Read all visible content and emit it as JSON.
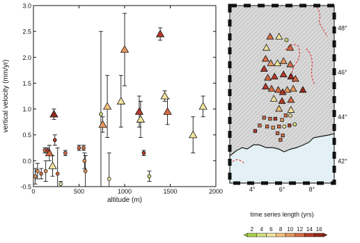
{
  "colors": {
    "scale": [
      "#a8d34a",
      "#d6e07c",
      "#f2e59e",
      "#f4c27c",
      "#e7975e",
      "#d76b43",
      "#b53a2a",
      "#8f2b1e"
    ],
    "ocean": "#e3f1f6",
    "land": "#d8d8d8",
    "fault": "#e2222b",
    "frame": "#111111"
  },
  "chart_data": [
    {
      "type": "scatter",
      "title": "",
      "xlabel": "altitude (m)",
      "ylabel": "vertical velocity (mm/yr)",
      "xlim": [
        0,
        2000
      ],
      "ylim": [
        -0.5,
        3.0
      ],
      "xticks": [
        "0",
        "500",
        "1000",
        "1500",
        "2000"
      ],
      "yticks": [
        "-0.5",
        "0.0",
        "0.5",
        "1.0",
        "1.5",
        "2.0",
        "2.5",
        "3.0"
      ],
      "color_variable": "time series length (yrs)",
      "series": [
        {
          "marker": "triangle",
          "points": [
            {
              "x": 225,
              "y": 0.9,
              "err": 0.1,
              "t": 15
            },
            {
              "x": 175,
              "y": 0.15,
              "err": 0.15,
              "t": 11
            },
            {
              "x": 210,
              "y": -0.1,
              "err": 0.2,
              "t": 5
            },
            {
              "x": 760,
              "y": 0.7,
              "err": 0.15,
              "t": 9
            },
            {
              "x": 810,
              "y": 1.05,
              "err": 0.6,
              "t": 8
            },
            {
              "x": 960,
              "y": 1.15,
              "err": 0.5,
              "t": 5
            },
            {
              "x": 1000,
              "y": 2.15,
              "err": 0.7,
              "t": 10
            },
            {
              "x": 1160,
              "y": 0.95,
              "err": 0.3,
              "t": 14
            },
            {
              "x": 1175,
              "y": 0.8,
              "err": 0.35,
              "t": 5
            },
            {
              "x": 1390,
              "y": 2.45,
              "err": 0.12,
              "t": 13
            },
            {
              "x": 1440,
              "y": 1.25,
              "err": 0.1,
              "t": 6
            },
            {
              "x": 1470,
              "y": 0.95,
              "err": 0.25,
              "t": 11
            },
            {
              "x": 1750,
              "y": 0.5,
              "err": 0.35,
              "t": 5
            },
            {
              "x": 1860,
              "y": 1.05,
              "err": 0.2,
              "t": 5
            }
          ]
        },
        {
          "marker": "circle",
          "points": [
            {
              "x": 20,
              "y": -0.3,
              "err": 0.15,
              "t": 10
            },
            {
              "x": 45,
              "y": -0.2,
              "err": 0.15,
              "t": 9
            },
            {
              "x": 85,
              "y": -0.25,
              "err": 0.1,
              "t": 11
            },
            {
              "x": 125,
              "y": 0.2,
              "err": 0.05,
              "t": 12
            },
            {
              "x": 135,
              "y": -0.2,
              "err": 0.2,
              "t": 10
            },
            {
              "x": 155,
              "y": 0.2,
              "err": 0.05,
              "t": 13
            },
            {
              "x": 235,
              "y": 0.4,
              "err": 0.1,
              "t": 13
            },
            {
              "x": 265,
              "y": -0.25,
              "err": 0.5,
              "t": 11
            },
            {
              "x": 300,
              "y": -0.45,
              "err": 0.05,
              "t": 5
            },
            {
              "x": 350,
              "y": 0.15,
              "err": 0.05,
              "t": 12
            },
            {
              "x": 500,
              "y": 0.25,
              "err": 0.05,
              "t": 12
            },
            {
              "x": 550,
              "y": 0.25,
              "err": 0.05,
              "t": 11
            },
            {
              "x": 560,
              "y": 0.0,
              "err": 0.15,
              "t": 9
            },
            {
              "x": 570,
              "y": -0.2,
              "err": 0.3,
              "t": 10
            },
            {
              "x": 740,
              "y": 0.9,
              "err": 1.6,
              "t": 4
            },
            {
              "x": 830,
              "y": -0.35,
              "err": 0.5,
              "t": 5
            },
            {
              "x": 1210,
              "y": 0.15,
              "err": 0.05,
              "t": 13
            },
            {
              "x": 1270,
              "y": -0.3,
              "err": 0.1,
              "t": 4
            }
          ]
        }
      ]
    },
    {
      "type": "map",
      "lon_ticks": [
        "4°",
        "6°",
        "8°"
      ],
      "lat_ticks": [
        "48°",
        "46°",
        "44°",
        "42°"
      ],
      "lon_range": [
        2.5,
        9.5
      ],
      "lat_range": [
        41.0,
        49.0
      ],
      "sites": [
        {
          "lon": 5.2,
          "lat": 47.6,
          "marker": "triangle",
          "t": 11
        },
        {
          "lon": 5.8,
          "lat": 47.6,
          "marker": "triangle",
          "t": 5
        },
        {
          "lon": 6.3,
          "lat": 47.45,
          "marker": "circle",
          "t": 4
        },
        {
          "lon": 4.95,
          "lat": 47.1,
          "marker": "triangle",
          "t": 5
        },
        {
          "lon": 6.55,
          "lat": 47.1,
          "marker": "triangle",
          "t": 12
        },
        {
          "lon": 4.9,
          "lat": 46.6,
          "marker": "triangle",
          "t": 12
        },
        {
          "lon": 5.25,
          "lat": 46.4,
          "marker": "triangle",
          "t": 10
        },
        {
          "lon": 4.8,
          "lat": 46.15,
          "marker": "triangle",
          "t": 13
        },
        {
          "lon": 5.7,
          "lat": 46.4,
          "marker": "triangle",
          "t": 5
        },
        {
          "lon": 6.1,
          "lat": 46.5,
          "marker": "triangle",
          "t": 9
        },
        {
          "lon": 6.55,
          "lat": 46.35,
          "marker": "triangle",
          "t": 11
        },
        {
          "lon": 5.05,
          "lat": 45.75,
          "marker": "triangle",
          "t": 12
        },
        {
          "lon": 5.5,
          "lat": 45.8,
          "marker": "triangle",
          "t": 13
        },
        {
          "lon": 6.1,
          "lat": 45.9,
          "marker": "triangle",
          "t": 14
        },
        {
          "lon": 6.6,
          "lat": 45.8,
          "marker": "triangle",
          "t": 15
        },
        {
          "lon": 6.9,
          "lat": 45.7,
          "marker": "triangle",
          "t": 11
        },
        {
          "lon": 4.9,
          "lat": 45.35,
          "marker": "triangle",
          "t": 13
        },
        {
          "lon": 5.3,
          "lat": 45.25,
          "marker": "triangle",
          "t": 11
        },
        {
          "lon": 5.75,
          "lat": 45.2,
          "marker": "triangle",
          "t": 12
        },
        {
          "lon": 6.05,
          "lat": 45.1,
          "marker": "triangle",
          "t": 14
        },
        {
          "lon": 6.35,
          "lat": 45.2,
          "marker": "triangle",
          "t": 10
        },
        {
          "lon": 6.75,
          "lat": 45.25,
          "marker": "triangle",
          "t": 9
        },
        {
          "lon": 7.4,
          "lat": 45.2,
          "marker": "triangle",
          "t": 15
        },
        {
          "lon": 5.45,
          "lat": 44.8,
          "marker": "triangle",
          "t": 5
        },
        {
          "lon": 6.0,
          "lat": 44.7,
          "marker": "triangle",
          "t": 13
        },
        {
          "lon": 6.6,
          "lat": 44.75,
          "marker": "triangle",
          "t": 11
        },
        {
          "lon": 5.8,
          "lat": 44.35,
          "marker": "triangle",
          "t": 8
        },
        {
          "lon": 6.6,
          "lat": 44.3,
          "marker": "triangle",
          "t": 5
        },
        {
          "lon": 6.25,
          "lat": 44.05,
          "marker": "circle",
          "t": 11
        },
        {
          "lon": 6.55,
          "lat": 44.05,
          "marker": "circle",
          "t": 5
        },
        {
          "lon": 4.8,
          "lat": 43.95,
          "marker": "circle",
          "t": 11
        },
        {
          "lon": 5.2,
          "lat": 43.9,
          "marker": "circle",
          "t": 12
        },
        {
          "lon": 5.55,
          "lat": 43.9,
          "marker": "circle",
          "t": 13
        },
        {
          "lon": 6.0,
          "lat": 43.85,
          "marker": "circle",
          "t": 9
        },
        {
          "lon": 4.5,
          "lat": 43.6,
          "marker": "circle",
          "t": 12
        },
        {
          "lon": 5.0,
          "lat": 43.55,
          "marker": "circle",
          "t": 11
        },
        {
          "lon": 5.4,
          "lat": 43.5,
          "marker": "circle",
          "t": 10
        },
        {
          "lon": 5.8,
          "lat": 43.55,
          "marker": "circle",
          "t": 11
        },
        {
          "lon": 6.15,
          "lat": 43.55,
          "marker": "circle",
          "t": 5
        },
        {
          "lon": 6.5,
          "lat": 43.6,
          "marker": "circle",
          "t": 13
        },
        {
          "lon": 6.85,
          "lat": 43.65,
          "marker": "circle",
          "t": 4
        },
        {
          "lon": 4.2,
          "lat": 43.35,
          "marker": "circle",
          "t": 13
        },
        {
          "lon": 5.7,
          "lat": 43.25,
          "marker": "circle",
          "t": 11
        },
        {
          "lon": 6.05,
          "lat": 43.15,
          "marker": "circle",
          "t": 12
        },
        {
          "lon": 5.9,
          "lat": 42.95,
          "marker": "circle",
          "t": 12
        }
      ]
    },
    {
      "type": "colorbar",
      "label": "time series length (yrs)",
      "ticks": [
        "2",
        "4",
        "6",
        "8",
        "10",
        "12",
        "14",
        "16"
      ],
      "range": [
        1,
        17
      ]
    }
  ]
}
